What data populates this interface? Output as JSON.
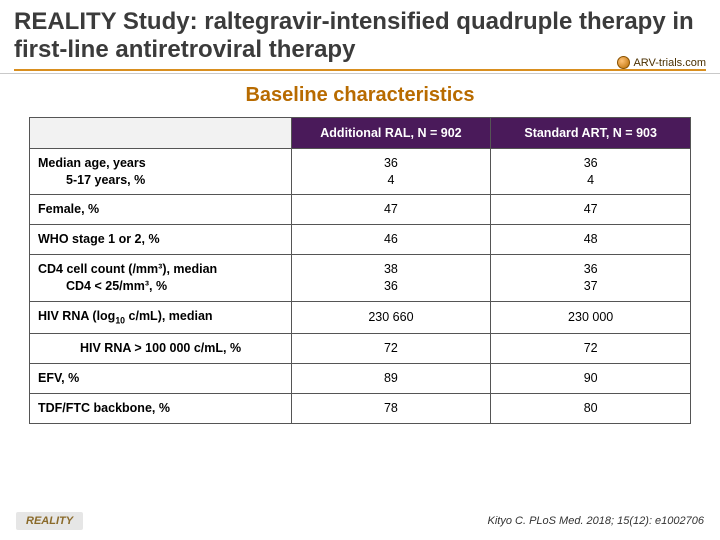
{
  "title": "REALITY Study: raltegravir-intensified quadruple therapy in first-line antiretroviral therapy",
  "logo_text": "ARV-trials.com",
  "subtitle": "Baseline characteristics",
  "colors": {
    "title_rule": "#d98f1f",
    "subtitle": "#b86b00",
    "header_bg": "#4a1a5a",
    "header_fg": "#ffffff",
    "blank_bg": "#f2f2f2",
    "border": "#555555"
  },
  "table": {
    "col1_header": "Additional RAL, N = 902",
    "col2_header": "Standard ART, N = 903",
    "rows": [
      {
        "label_lines": [
          "Median age, years",
          "5-17 years, %"
        ],
        "indent": [
          0,
          1
        ],
        "val1_lines": [
          "36",
          "4"
        ],
        "val2_lines": [
          "36",
          "4"
        ]
      },
      {
        "label_lines": [
          "Female, %"
        ],
        "indent": [
          0
        ],
        "val1_lines": [
          "47"
        ],
        "val2_lines": [
          "47"
        ]
      },
      {
        "label_lines": [
          "WHO stage 1 or 2, %"
        ],
        "indent": [
          0
        ],
        "val1_lines": [
          "46"
        ],
        "val2_lines": [
          "48"
        ]
      },
      {
        "label_lines": [
          "CD4 cell count (/mm³), median",
          "CD4 < 25/mm³, %"
        ],
        "indent": [
          0,
          1
        ],
        "val1_lines": [
          "38",
          "36"
        ],
        "val2_lines": [
          "36",
          "37"
        ]
      },
      {
        "label_html": "HIV RNA (log<sub>10</sub> c/mL), median",
        "indent": [
          0
        ],
        "val1_lines": [
          "230 660"
        ],
        "val2_lines": [
          "230 000"
        ]
      },
      {
        "label_lines": [
          "HIV RNA > 100 000 c/mL, %"
        ],
        "indent": [
          2
        ],
        "val1_lines": [
          "72"
        ],
        "val2_lines": [
          "72"
        ]
      },
      {
        "label_lines": [
          "EFV, %"
        ],
        "indent": [
          0
        ],
        "val1_lines": [
          "89"
        ],
        "val2_lines": [
          "90"
        ]
      },
      {
        "label_lines": [
          "TDF/FTC backbone, %"
        ],
        "indent": [
          0
        ],
        "val1_lines": [
          "78"
        ],
        "val2_lines": [
          "80"
        ]
      }
    ]
  },
  "footer_left": "REALITY",
  "footer_right": "Kityo C. PLoS Med. 2018; 15(12): e1002706"
}
